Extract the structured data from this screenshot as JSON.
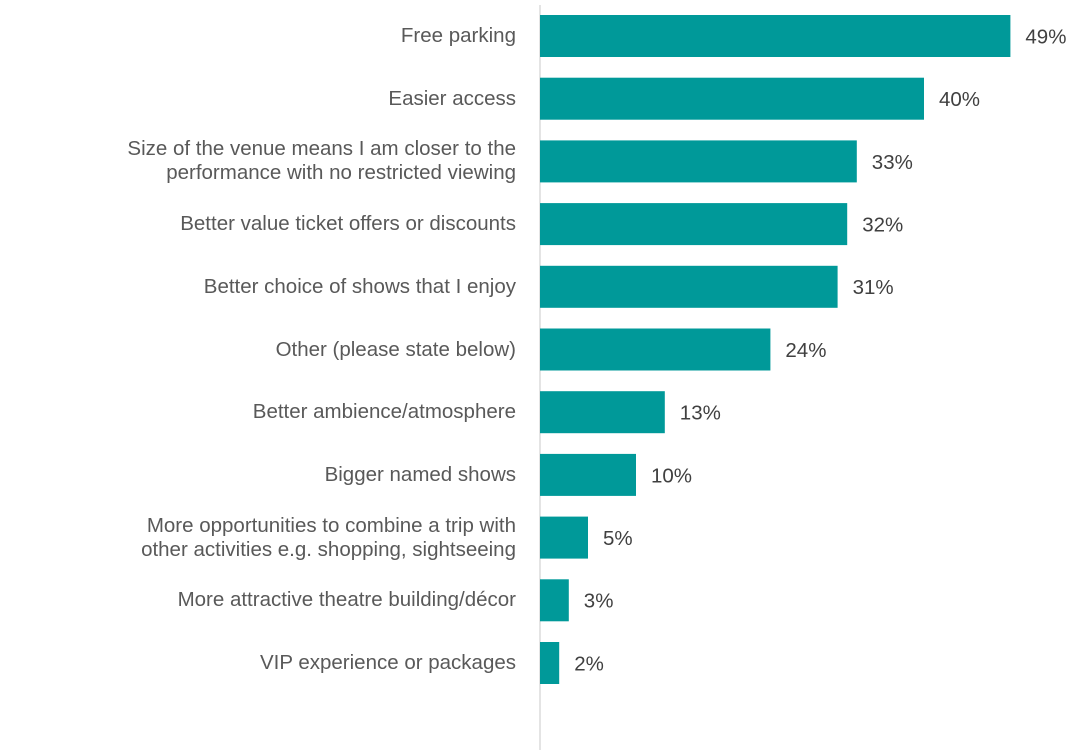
{
  "chart_data": {
    "type": "bar",
    "orientation": "horizontal",
    "categories": [
      "Free parking",
      "Easier access",
      "Size of the venue means I am closer to the\nperformance with no restricted viewing",
      "Better value ticket offers or discounts",
      "Better choice of shows that I enjoy",
      "Other (please state below)",
      "Better ambience/atmosphere",
      "Bigger named shows",
      "More opportunities to combine a trip with\nother activities e.g. shopping, sightseeing",
      "More attractive theatre building/décor",
      "VIP experience or packages"
    ],
    "values": [
      49,
      40,
      33,
      32,
      31,
      24,
      13,
      10,
      5,
      3,
      2
    ],
    "value_labels": [
      "49%",
      "40%",
      "33%",
      "32%",
      "31%",
      "24%",
      "13%",
      "10%",
      "5%",
      "3%",
      "2%"
    ],
    "color": "#009999"
  }
}
